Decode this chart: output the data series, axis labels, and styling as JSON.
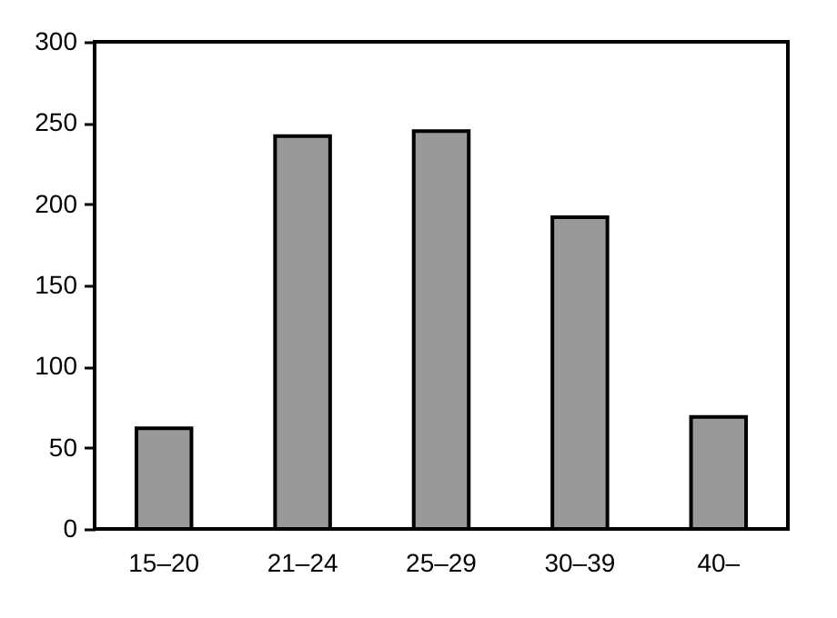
{
  "chart_data": {
    "type": "bar",
    "categories": [
      "15–20",
      "21–24",
      "25–29",
      "30–39",
      "40–"
    ],
    "values": [
      62,
      242,
      245,
      192,
      69
    ],
    "color": "#999999",
    "ylim": [
      0,
      300
    ],
    "yticks": [
      0,
      50,
      100,
      150,
      200,
      250,
      300
    ],
    "grid": false
  }
}
